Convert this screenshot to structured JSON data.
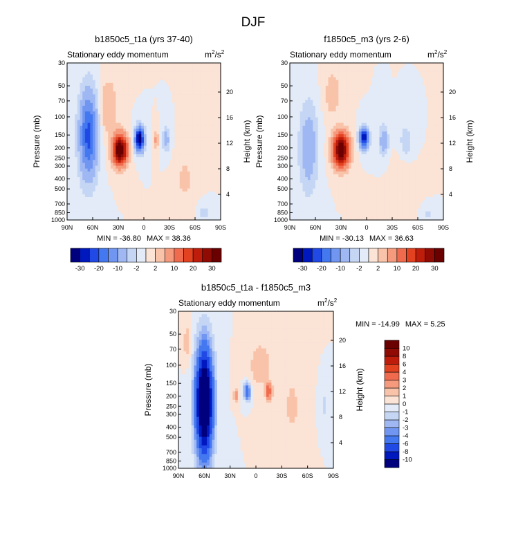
{
  "figure": {
    "title": "DJF"
  },
  "chart_data": [
    {
      "type": "heatmap",
      "title": "b1850c5_t1a (yrs 37-40)",
      "subtitle": "Stationary eddy momentum",
      "units": "m",
      "units_sup": "2",
      "units_sep": "/s",
      "units_sup2": "2",
      "xlabel": "",
      "ylabel": "Pressure (mb)",
      "ylabel_right": "Height (km)",
      "x_ticks": [
        "90N",
        "60N",
        "30N",
        "0",
        "30S",
        "60S",
        "90S"
      ],
      "x_range": [
        90,
        -90
      ],
      "y_ticks": [
        "30",
        "50",
        "70",
        "100",
        "150",
        "200",
        "250",
        "300",
        "400",
        "500",
        "700",
        "850",
        "1000"
      ],
      "y_range_mb": [
        30,
        1000
      ],
      "height_ticks": [
        "4",
        "8",
        "12",
        "16",
        "20"
      ],
      "min_label": "MIN = -36.80",
      "max_label": "MAX = 38.36",
      "min": -36.8,
      "max": 38.36,
      "features": [
        {
          "lat": 65,
          "p": 150,
          "v": -22,
          "w": 10,
          "d": 0.9
        },
        {
          "lat": 28,
          "p": 210,
          "v": 38,
          "w": 8,
          "d": 0.32
        },
        {
          "lat": 5,
          "p": 165,
          "v": -36,
          "w": 5,
          "d": 0.25
        },
        {
          "lat": -14,
          "p": 170,
          "v": 6,
          "w": 3,
          "d": 0.2
        },
        {
          "lat": -26,
          "p": 165,
          "v": -8,
          "w": 4,
          "d": 0.25
        },
        {
          "lat": -48,
          "p": 400,
          "v": 3,
          "w": 9,
          "d": 0.5
        },
        {
          "lat": 42,
          "p": 80,
          "v": 5,
          "w": 10,
          "d": 0.6
        },
        {
          "lat": -70,
          "p": 850,
          "v": -4,
          "w": 5,
          "d": 0.15
        }
      ],
      "colorbar": {
        "orientation": "horizontal",
        "labels": [
          "-30",
          "-20",
          "-10",
          "-2",
          "2",
          "10",
          "20",
          "30"
        ]
      }
    },
    {
      "type": "heatmap",
      "title": "f1850c5_m3 (yrs 2-6)",
      "subtitle": "Stationary eddy momentum",
      "units": "m",
      "units_sup": "2",
      "units_sep": "/s",
      "units_sup2": "2",
      "xlabel": "",
      "ylabel": "Pressure (mb)",
      "ylabel_right": "Height (km)",
      "x_ticks": [
        "90N",
        "60N",
        "30N",
        "0",
        "30S",
        "60S",
        "90S"
      ],
      "x_range": [
        90,
        -90
      ],
      "y_ticks": [
        "30",
        "50",
        "70",
        "100",
        "150",
        "200",
        "250",
        "300",
        "400",
        "500",
        "700",
        "850",
        "1000"
      ],
      "y_range_mb": [
        30,
        1000
      ],
      "height_ticks": [
        "4",
        "8",
        "12",
        "16",
        "20"
      ],
      "min_label": "MIN = -30.13",
      "max_label": "MAX = 36.63",
      "min": -30.13,
      "max": 36.63,
      "features": [
        {
          "lat": 68,
          "p": 200,
          "v": -9,
          "w": 10,
          "d": 0.9
        },
        {
          "lat": 30,
          "p": 210,
          "v": 36,
          "w": 9,
          "d": 0.35
        },
        {
          "lat": 3,
          "p": 160,
          "v": -30,
          "w": 5,
          "d": 0.22
        },
        {
          "lat": -20,
          "p": 170,
          "v": -9,
          "w": 5,
          "d": 0.3
        },
        {
          "lat": -46,
          "p": 170,
          "v": -5,
          "w": 6,
          "d": 0.3
        },
        {
          "lat": -40,
          "p": 500,
          "v": 2,
          "w": 10,
          "d": 0.5
        },
        {
          "lat": 40,
          "p": 60,
          "v": 4,
          "w": 9,
          "d": 0.5
        },
        {
          "lat": -72,
          "p": 900,
          "v": -3,
          "w": 5,
          "d": 0.12
        }
      ],
      "colorbar": {
        "orientation": "horizontal",
        "labels": [
          "-30",
          "-20",
          "-10",
          "-2",
          "2",
          "10",
          "20",
          "30"
        ]
      }
    },
    {
      "type": "heatmap",
      "title": "b1850c5_t1a - f1850c5_m3",
      "subtitle": "Stationary eddy momentum",
      "units": "m",
      "units_sup": "2",
      "units_sep": "/s",
      "units_sup2": "2",
      "xlabel": "",
      "ylabel": "Pressure (mb)",
      "ylabel_right": "Height (km)",
      "x_ticks": [
        "90N",
        "60N",
        "30N",
        "0",
        "30S",
        "60S",
        "90S"
      ],
      "x_range": [
        90,
        -90
      ],
      "y_ticks": [
        "30",
        "50",
        "70",
        "100",
        "150",
        "200",
        "250",
        "300",
        "400",
        "500",
        "700",
        "850",
        "1000"
      ],
      "y_range_mb": [
        30,
        1000
      ],
      "height_ticks": [
        "4",
        "8",
        "12",
        "16",
        "20"
      ],
      "min_label": "MIN = -14.99",
      "max_label": "MAX =   5.25",
      "min": -14.99,
      "max": 5.25,
      "features": [
        {
          "lat": 60,
          "p": 230,
          "v": -15,
          "w": 10,
          "d": 1.2
        },
        {
          "lat": 80,
          "p": 60,
          "v": 2,
          "w": 4,
          "d": 0.4
        },
        {
          "lat": 23,
          "p": 200,
          "v": 3,
          "w": 3,
          "d": 0.15
        },
        {
          "lat": 10,
          "p": 180,
          "v": -6,
          "w": 4,
          "d": 0.2
        },
        {
          "lat": -15,
          "p": 180,
          "v": 4,
          "w": 4,
          "d": 0.2
        },
        {
          "lat": -5,
          "p": 100,
          "v": 2,
          "w": 12,
          "d": 0.5
        },
        {
          "lat": -42,
          "p": 250,
          "v": 1.6,
          "w": 8,
          "d": 0.6
        },
        {
          "lat": -80,
          "p": 250,
          "v": -2,
          "w": 3,
          "d": 0.25
        }
      ],
      "colorbar": {
        "orientation": "vertical",
        "labels": [
          "10",
          "8",
          "6",
          "4",
          "3",
          "2",
          "1",
          "0",
          "-1",
          "-2",
          "-3",
          "-4",
          "-6",
          "-8",
          "-10"
        ]
      }
    }
  ],
  "colors": {
    "scale": [
      "#00007f",
      "#0019bf",
      "#2149e5",
      "#4478f0",
      "#7096f2",
      "#9fb8f3",
      "#c5d6f5",
      "#e2ebf7",
      "#fbe3d6",
      "#f9c3aa",
      "#f69a7d",
      "#f06b4e",
      "#e2421f",
      "#bf1d0b",
      "#910b05",
      "#6a0000"
    ]
  }
}
